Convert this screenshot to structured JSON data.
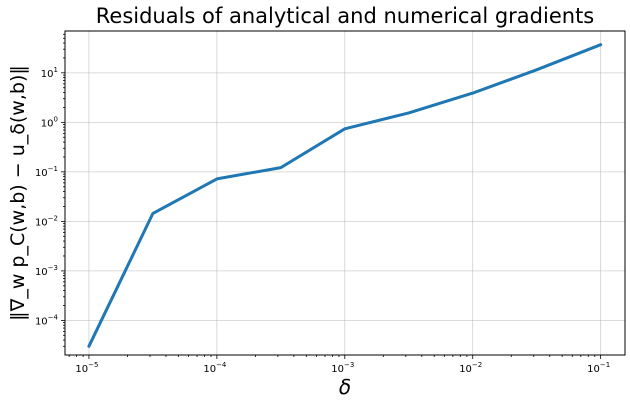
{
  "chart_data": {
    "type": "line",
    "title": "Residuals of analytical and numerical gradients",
    "xlabel": "δ",
    "ylabel": "‖∇_w p_C(w,b) − u_δ(w,b)‖",
    "xscale": "log",
    "yscale": "log",
    "xlim": [
      6.5e-06,
      0.155
    ],
    "ylim": [
      2e-05,
      70
    ],
    "grid": true,
    "x_ticks": [
      {
        "base": "10",
        "exp": "−5",
        "value": 1e-05
      },
      {
        "base": "10",
        "exp": "−4",
        "value": 0.0001
      },
      {
        "base": "10",
        "exp": "−3",
        "value": 0.001
      },
      {
        "base": "10",
        "exp": "−2",
        "value": 0.01
      },
      {
        "base": "10",
        "exp": "−1",
        "value": 0.1
      }
    ],
    "y_ticks": [
      {
        "base": "10",
        "exp": "−4",
        "value": 0.0001
      },
      {
        "base": "10",
        "exp": "−3",
        "value": 0.001
      },
      {
        "base": "10",
        "exp": "−2",
        "value": 0.01
      },
      {
        "base": "10",
        "exp": "−1",
        "value": 0.1
      },
      {
        "base": "10",
        "exp": "0",
        "value": 1
      },
      {
        "base": "10",
        "exp": "1",
        "value": 10
      }
    ],
    "series": [
      {
        "color": "#1f77b4",
        "x": [
          1e-05,
          3.16e-05,
          0.0001,
          0.000316,
          0.001,
          0.00316,
          0.01,
          0.0316,
          0.1
        ],
        "y": [
          3e-05,
          0.0145,
          0.072,
          0.122,
          0.74,
          1.55,
          3.9,
          11.5,
          37
        ]
      }
    ]
  }
}
